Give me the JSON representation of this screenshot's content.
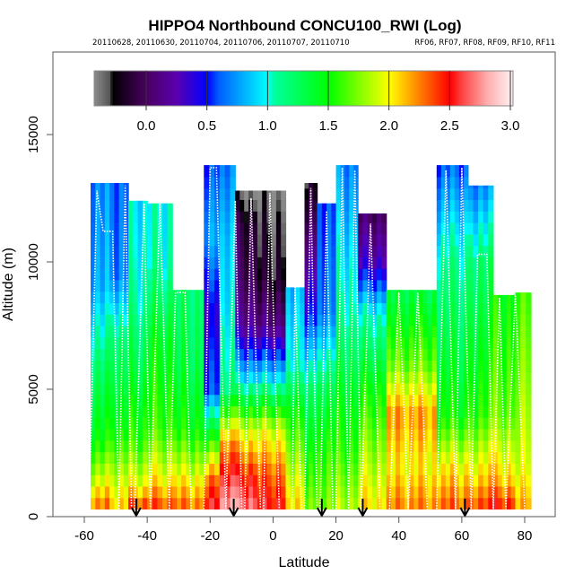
{
  "chart_data": {
    "type": "heatmap",
    "title": "HIPPO4 Northbound CONCU100_RWI (Log)",
    "subtitle_left": "20110628, 20110630, 20110704, 20110706, 20110707, 20110710",
    "subtitle_right": "RF06, RF07, RF08, RF09, RF10, RF11",
    "xlabel": "Latitude",
    "ylabel": "Altitude (m)",
    "xlim": [
      -70,
      90
    ],
    "ylim": [
      0,
      18200
    ],
    "x_ticks": [
      -60,
      -40,
      -20,
      0,
      20,
      40,
      60,
      80
    ],
    "x_tick_labels": [
      "-60",
      "-40",
      "-20",
      "0",
      "20",
      "40",
      "60",
      "80"
    ],
    "y_ticks": [
      0,
      5000,
      10000,
      15000
    ],
    "y_tick_labels": [
      "0",
      "5000",
      "10000",
      "15000"
    ],
    "colorbar": {
      "range": [
        -0.43,
        3.02
      ],
      "ticks": [
        0.0,
        0.5,
        1.0,
        1.5,
        2.0,
        2.5,
        3.0
      ],
      "tick_labels": [
        "0.0",
        "0.5",
        "1.0",
        "1.5",
        "2.0",
        "2.5",
        "3.0"
      ],
      "stops": [
        {
          "v": -0.43,
          "c": "#8c8c8c"
        },
        {
          "v": -0.3,
          "c": "#555555"
        },
        {
          "v": -0.28,
          "c": "#000000"
        },
        {
          "v": 0.0,
          "c": "#4a0060"
        },
        {
          "v": 0.25,
          "c": "#5a00b0"
        },
        {
          "v": 0.5,
          "c": "#0000ff"
        },
        {
          "v": 0.6,
          "c": "#0060ff"
        },
        {
          "v": 1.0,
          "c": "#00ffff"
        },
        {
          "v": 1.05,
          "c": "#00ffa0"
        },
        {
          "v": 1.5,
          "c": "#00ff00"
        },
        {
          "v": 2.0,
          "c": "#ffff00"
        },
        {
          "v": 2.1,
          "c": "#ffcc00"
        },
        {
          "v": 2.5,
          "c": "#ff0000"
        },
        {
          "v": 2.6,
          "c": "#ff4444"
        },
        {
          "v": 2.8,
          "c": "#ffaaaa"
        },
        {
          "v": 3.02,
          "c": "#fff4f4"
        }
      ]
    },
    "altitude_bin_m": 450,
    "columns": [
      {
        "lat": [
          -58,
          -52
        ],
        "top": 13100,
        "profile": [
          [
            0,
            2.4
          ],
          [
            1500,
            1.9
          ],
          [
            3000,
            1.5
          ],
          [
            6000,
            1.2
          ],
          [
            9000,
            0.8
          ],
          [
            13100,
            0.7
          ]
        ]
      },
      {
        "lat": [
          -52,
          -46
        ],
        "top": 13100,
        "profile": [
          [
            0,
            2.2
          ],
          [
            1500,
            1.9
          ],
          [
            3500,
            1.5
          ],
          [
            7000,
            1.2
          ],
          [
            9500,
            0.7
          ],
          [
            13100,
            0.65
          ]
        ]
      },
      {
        "lat": [
          -46,
          -40
        ],
        "top": 12400,
        "profile": [
          [
            0,
            2.6
          ],
          [
            1200,
            2.0
          ],
          [
            3000,
            1.6
          ],
          [
            6000,
            1.3
          ],
          [
            9000,
            1.05
          ],
          [
            12400,
            0.95
          ]
        ]
      },
      {
        "lat": [
          -40,
          -32
        ],
        "top": 12300,
        "profile": [
          [
            0,
            2.5
          ],
          [
            1500,
            2.0
          ],
          [
            3500,
            1.6
          ],
          [
            7000,
            1.4
          ],
          [
            10000,
            1.05
          ],
          [
            12300,
            1.0
          ]
        ]
      },
      {
        "lat": [
          -32,
          -22
        ],
        "top": 8900,
        "profile": [
          [
            0,
            2.4
          ],
          [
            1800,
            1.9
          ],
          [
            3500,
            1.5
          ],
          [
            6000,
            1.3
          ],
          [
            8900,
            1.2
          ]
        ]
      },
      {
        "lat": [
          -22,
          -17
        ],
        "top": 13800,
        "profile": [
          [
            0,
            2.7
          ],
          [
            1500,
            2.3
          ],
          [
            3000,
            1.6
          ],
          [
            5000,
            0.6
          ],
          [
            8000,
            0.4
          ],
          [
            11000,
            0.8
          ],
          [
            13800,
            0.6
          ]
        ]
      },
      {
        "lat": [
          -17,
          -12
        ],
        "top": 13800,
        "profile": [
          [
            0,
            2.9
          ],
          [
            1500,
            2.6
          ],
          [
            3000,
            2.2
          ],
          [
            5000,
            1.2
          ],
          [
            8000,
            1.0
          ],
          [
            11000,
            0.9
          ],
          [
            13800,
            0.7
          ]
        ]
      },
      {
        "lat": [
          -12,
          -5
        ],
        "top": 12800,
        "profile": [
          [
            0,
            2.8
          ],
          [
            1500,
            2.5
          ],
          [
            3500,
            1.9
          ],
          [
            5500,
            0.9
          ],
          [
            7500,
            0.2
          ],
          [
            9500,
            0.0
          ],
          [
            11500,
            -0.1
          ],
          [
            12800,
            -0.4
          ]
        ]
      },
      {
        "lat": [
          -5,
          4
        ],
        "top": 12800,
        "profile": [
          [
            0,
            2.6
          ],
          [
            1800,
            2.3
          ],
          [
            3500,
            1.9
          ],
          [
            5500,
            0.9
          ],
          [
            7500,
            0.1
          ],
          [
            9500,
            -0.2
          ],
          [
            11500,
            -0.3
          ],
          [
            12800,
            -0.4
          ]
        ]
      },
      {
        "lat": [
          4,
          10
        ],
        "top": 9000,
        "profile": [
          [
            0,
            2.1
          ],
          [
            2000,
            1.8
          ],
          [
            4000,
            1.5
          ],
          [
            6000,
            1.0
          ],
          [
            9000,
            0.8
          ]
        ]
      },
      {
        "lat": [
          10,
          14
        ],
        "top": 13100,
        "profile": [
          [
            0,
            1.8
          ],
          [
            2500,
            1.5
          ],
          [
            5000,
            1.2
          ],
          [
            8000,
            0.5
          ],
          [
            11000,
            0.1
          ],
          [
            13100,
            -0.2
          ]
        ]
      },
      {
        "lat": [
          14,
          20
        ],
        "top": 12300,
        "profile": [
          [
            0,
            1.8
          ],
          [
            2500,
            1.6
          ],
          [
            5000,
            1.3
          ],
          [
            8000,
            0.7
          ],
          [
            12300,
            0.6
          ]
        ]
      },
      {
        "lat": [
          20,
          27
        ],
        "top": 13800,
        "profile": [
          [
            0,
            1.9
          ],
          [
            2500,
            1.6
          ],
          [
            5000,
            1.4
          ],
          [
            8000,
            1.1
          ],
          [
            11000,
            0.9
          ],
          [
            13800,
            0.7
          ]
        ]
      },
      {
        "lat": [
          27,
          36
        ],
        "top": 11900,
        "profile": [
          [
            0,
            2.1
          ],
          [
            2500,
            1.8
          ],
          [
            5000,
            1.5
          ],
          [
            8000,
            1.0
          ],
          [
            10000,
            0.3
          ],
          [
            11900,
            0.0
          ]
        ]
      },
      {
        "lat": [
          36,
          52
        ],
        "top": 8900,
        "profile": [
          [
            0,
            2.3
          ],
          [
            2000,
            2.0
          ],
          [
            4000,
            2.2
          ],
          [
            6000,
            1.7
          ],
          [
            8900,
            1.3
          ]
        ]
      },
      {
        "lat": [
          52,
          62
        ],
        "top": 13800,
        "profile": [
          [
            0,
            2.4
          ],
          [
            2000,
            2.0
          ],
          [
            4000,
            1.5
          ],
          [
            7000,
            1.3
          ],
          [
            10000,
            1.1
          ],
          [
            13800,
            0.6
          ]
        ]
      },
      {
        "lat": [
          62,
          70
        ],
        "top": 13000,
        "profile": [
          [
            0,
            2.5
          ],
          [
            1500,
            2.1
          ],
          [
            4000,
            1.6
          ],
          [
            7000,
            1.4
          ],
          [
            10000,
            1.2
          ],
          [
            13000,
            0.7
          ]
        ]
      },
      {
        "lat": [
          70,
          77
        ],
        "top": 8700,
        "profile": [
          [
            0,
            2.6
          ],
          [
            1500,
            2.1
          ],
          [
            4000,
            1.7
          ],
          [
            8700,
            1.5
          ]
        ]
      },
      {
        "lat": [
          77,
          82
        ],
        "top": 8800,
        "profile": [
          [
            0,
            2.2
          ],
          [
            2000,
            1.9
          ],
          [
            4000,
            1.8
          ],
          [
            8800,
            1.6
          ]
        ]
      }
    ],
    "flight_tracks": [
      {
        "points": [
          [
            -58.5,
            300
          ],
          [
            -56,
            12800
          ],
          [
            -54,
            11200
          ],
          [
            -51,
            11200
          ],
          [
            -49,
            300
          ]
        ]
      },
      {
        "points": [
          [
            -49,
            300
          ],
          [
            -47,
            13000
          ],
          [
            -45,
            300
          ]
        ]
      },
      {
        "points": [
          [
            -44,
            300
          ],
          [
            -41,
            12300
          ],
          [
            -39,
            300
          ],
          [
            -36,
            12300
          ],
          [
            -33,
            300
          ]
        ]
      },
      {
        "points": [
          [
            -33,
            300
          ],
          [
            -31,
            8800
          ],
          [
            -28,
            8800
          ],
          [
            -26,
            300
          ]
        ]
      },
      {
        "points": [
          [
            -22,
            300
          ],
          [
            -20,
            13700
          ],
          [
            -18,
            13700
          ],
          [
            -15,
            300
          ]
        ]
      },
      {
        "points": [
          [
            -15,
            300
          ],
          [
            -12,
            12400
          ],
          [
            -10,
            300
          ]
        ]
      },
      {
        "points": [
          [
            -9,
            300
          ],
          [
            -7,
            12500
          ],
          [
            -4,
            300
          ]
        ]
      },
      {
        "points": [
          [
            -3,
            300
          ],
          [
            -1,
            12700
          ],
          [
            2,
            300
          ]
        ]
      },
      {
        "points": [
          [
            6,
            300
          ],
          [
            7,
            9000
          ],
          [
            9,
            300
          ]
        ]
      },
      {
        "points": [
          [
            10,
            300
          ],
          [
            12,
            12900
          ],
          [
            14,
            300
          ]
        ]
      },
      {
        "points": [
          [
            15,
            300
          ],
          [
            17,
            12000
          ],
          [
            19,
            300
          ]
        ]
      },
      {
        "points": [
          [
            20,
            300
          ],
          [
            22,
            13700
          ],
          [
            24,
            300
          ],
          [
            26,
            13600
          ],
          [
            28,
            300
          ]
        ]
      },
      {
        "points": [
          [
            28,
            300
          ],
          [
            31,
            11500
          ],
          [
            34,
            300
          ]
        ]
      },
      {
        "points": [
          [
            37,
            300
          ],
          [
            40,
            8800
          ],
          [
            43,
            300
          ],
          [
            46,
            8800
          ],
          [
            49,
            300
          ]
        ]
      },
      {
        "points": [
          [
            52,
            300
          ],
          [
            55,
            13600
          ],
          [
            58,
            300
          ]
        ]
      },
      {
        "points": [
          [
            58,
            300
          ],
          [
            60,
            13700
          ],
          [
            63,
            300
          ]
        ]
      },
      {
        "points": [
          [
            63,
            300
          ],
          [
            65,
            10300
          ],
          [
            68,
            10300
          ],
          [
            70,
            300
          ]
        ]
      },
      {
        "points": [
          [
            70,
            300
          ],
          [
            72,
            8600
          ],
          [
            74,
            300
          ],
          [
            77,
            8700
          ],
          [
            80,
            300
          ]
        ]
      }
    ],
    "arrows": [
      -43.5,
      -12.5,
      15.5,
      28.5,
      61
    ]
  }
}
